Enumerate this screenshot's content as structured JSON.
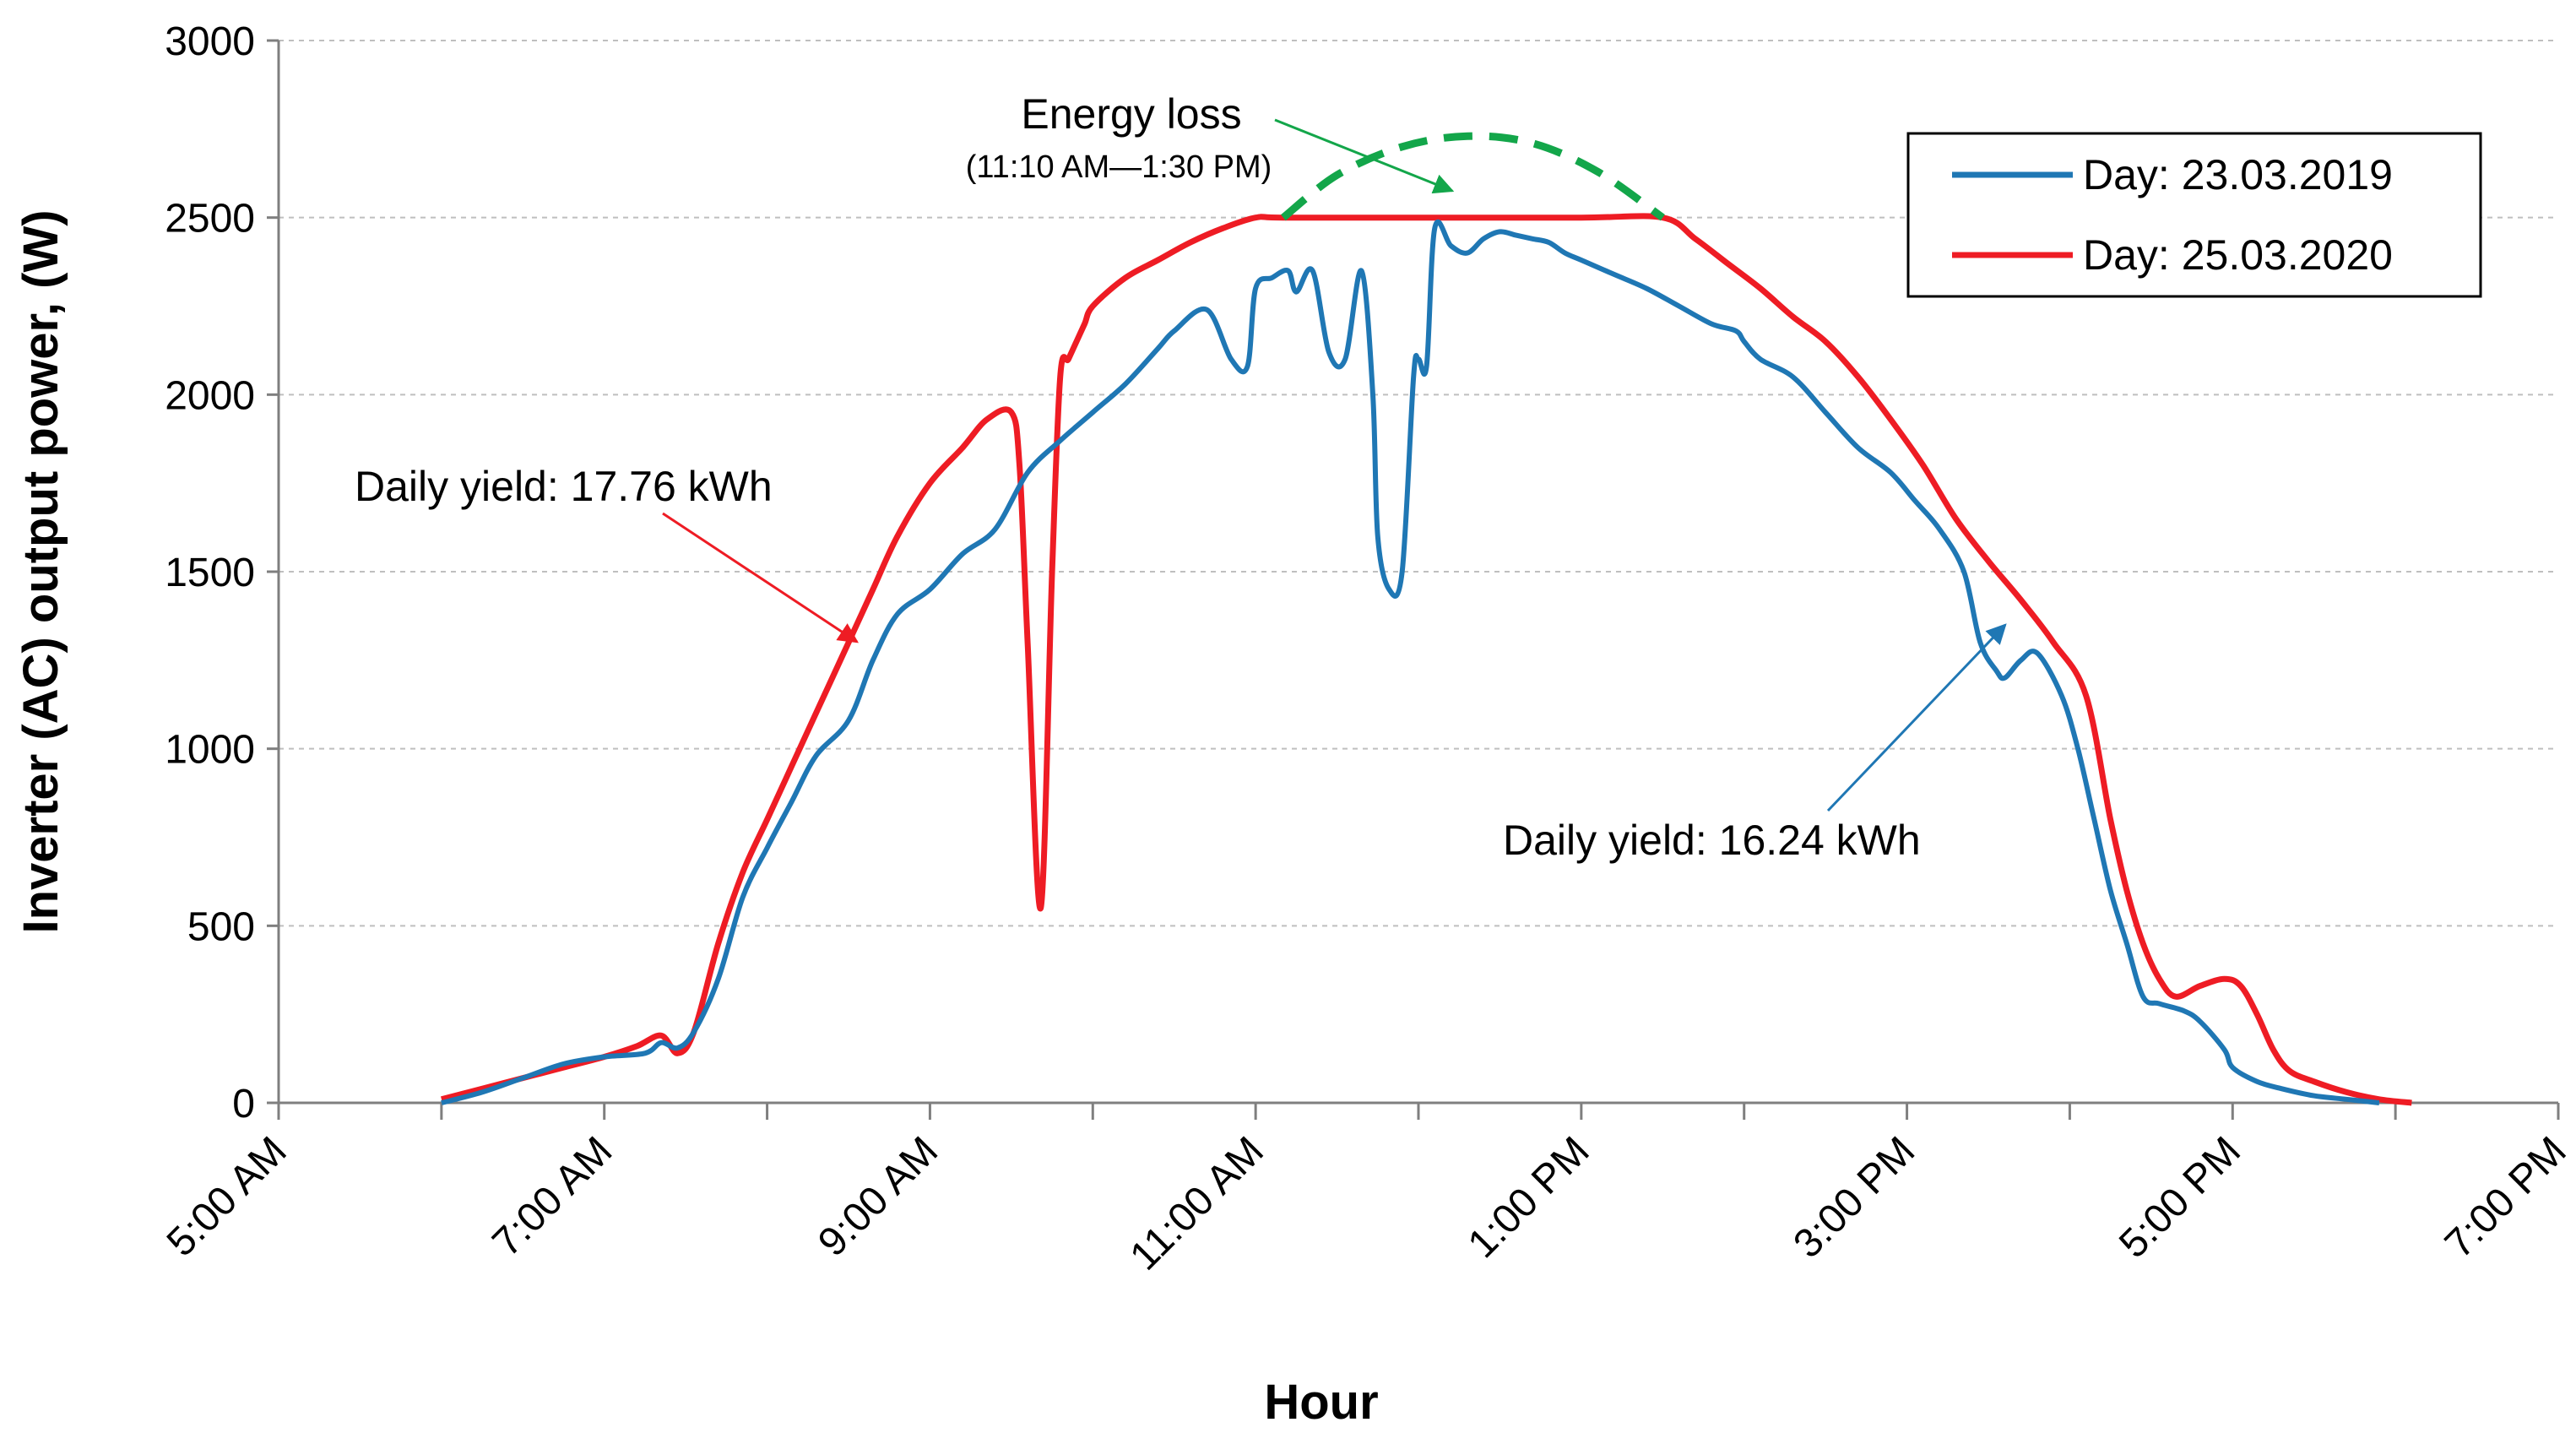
{
  "chart_data": {
    "type": "line",
    "title": "",
    "xlabel": "Hour",
    "ylabel": "Inverter (AC) output power, (W)",
    "xlim": [
      5,
      19
    ],
    "ylim": [
      0,
      3000
    ],
    "y_ticks": [
      0,
      500,
      1000,
      1500,
      2000,
      2500,
      3000
    ],
    "x_tick_values": [
      5,
      7,
      9,
      11,
      13,
      15,
      17,
      19
    ],
    "x_tick_labels": [
      "5:00 AM",
      "7:00 AM",
      "9:00 AM",
      "11:00 AM",
      "1:00 PM",
      "3:00 PM",
      "5:00 PM",
      "7:00 PM"
    ],
    "grid": "horizontal dashed",
    "legend_position": "top-right",
    "colors": {
      "series_2019": "#1f77b4",
      "series_2020": "#ee1c24",
      "energy_loss": "#13a64a"
    },
    "series": [
      {
        "name": "Day: 23.03.2019",
        "x": [
          6.0,
          6.25,
          6.5,
          6.75,
          7.0,
          7.25,
          7.35,
          7.45,
          7.55,
          7.7,
          7.85,
          8.0,
          8.15,
          8.3,
          8.5,
          8.65,
          8.8,
          9.0,
          9.2,
          9.4,
          9.6,
          9.8,
          10.0,
          10.2,
          10.4,
          10.5,
          10.7,
          10.85,
          10.95,
          11.0,
          11.1,
          11.2,
          11.25,
          11.35,
          11.45,
          11.55,
          11.65,
          11.72,
          11.75,
          11.82,
          11.9,
          11.97,
          12.0,
          12.05,
          12.1,
          12.2,
          12.3,
          12.4,
          12.5,
          12.6,
          12.7,
          12.8,
          12.9,
          13.0,
          13.2,
          13.4,
          13.6,
          13.8,
          13.95,
          14.0,
          14.1,
          14.3,
          14.5,
          14.7,
          14.9,
          15.05,
          15.2,
          15.35,
          15.45,
          15.55,
          15.6,
          15.7,
          15.8,
          15.95,
          16.05,
          16.15,
          16.25,
          16.35,
          16.45,
          16.55,
          16.7,
          16.8,
          16.95,
          17.0,
          17.15,
          17.3,
          17.5,
          17.7,
          17.9
        ],
        "y": [
          0,
          30,
          70,
          110,
          130,
          140,
          170,
          155,
          200,
          350,
          580,
          720,
          850,
          980,
          1080,
          1250,
          1380,
          1450,
          1550,
          1620,
          1780,
          1870,
          1950,
          2030,
          2130,
          2180,
          2240,
          2100,
          2080,
          2300,
          2330,
          2350,
          2290,
          2350,
          2120,
          2100,
          2350,
          2000,
          1600,
          1450,
          1500,
          2050,
          2100,
          2080,
          2470,
          2420,
          2400,
          2440,
          2460,
          2450,
          2440,
          2430,
          2400,
          2380,
          2340,
          2300,
          2250,
          2200,
          2180,
          2150,
          2100,
          2050,
          1950,
          1850,
          1780,
          1700,
          1620,
          1500,
          1300,
          1220,
          1200,
          1250,
          1270,
          1150,
          1000,
          800,
          600,
          450,
          300,
          280,
          260,
          230,
          150,
          100,
          60,
          40,
          20,
          10,
          0
        ]
      },
      {
        "name": "Day: 25.03.2020",
        "x": [
          6.0,
          6.25,
          6.5,
          6.75,
          7.0,
          7.2,
          7.35,
          7.45,
          7.55,
          7.7,
          7.85,
          8.0,
          8.15,
          8.3,
          8.5,
          8.65,
          8.8,
          9.0,
          9.2,
          9.35,
          9.5,
          9.55,
          9.6,
          9.68,
          9.75,
          9.8,
          9.85,
          9.9,
          9.95,
          10.0,
          10.2,
          10.4,
          10.6,
          10.8,
          11.0,
          11.17,
          12.0,
          13.0,
          13.5,
          13.7,
          13.9,
          14.1,
          14.3,
          14.5,
          14.7,
          14.9,
          15.1,
          15.3,
          15.5,
          15.7,
          15.9,
          16.1,
          16.25,
          16.35,
          16.45,
          16.55,
          16.65,
          16.8,
          16.95,
          17.05,
          17.15,
          17.25,
          17.35,
          17.5,
          17.7,
          17.9,
          18.1
        ],
        "y": [
          10,
          40,
          70,
          100,
          130,
          160,
          190,
          140,
          200,
          450,
          650,
          800,
          950,
          1100,
          1300,
          1450,
          1600,
          1750,
          1850,
          1930,
          1950,
          1800,
          1300,
          550,
          1500,
          2050,
          2100,
          2150,
          2200,
          2250,
          2330,
          2380,
          2430,
          2470,
          2500,
          2500,
          2500,
          2500,
          2500,
          2440,
          2370,
          2300,
          2220,
          2150,
          2050,
          1930,
          1800,
          1650,
          1530,
          1420,
          1300,
          1150,
          800,
          600,
          450,
          350,
          300,
          330,
          350,
          330,
          250,
          150,
          90,
          60,
          30,
          10,
          0
        ]
      }
    ],
    "energy_loss_curve": {
      "x": [
        11.17,
        11.5,
        11.9,
        12.3,
        12.7,
        13.1,
        13.5
      ],
      "y": [
        2500,
        2620,
        2700,
        2730,
        2710,
        2630,
        2500
      ]
    },
    "annotations": [
      {
        "text": "Energy loss",
        "subtext": "(11:10 AM—1:30 PM)",
        "target": [
          12.25,
          2565
        ]
      },
      {
        "text": "Daily yield: 17.76 kWh",
        "target": [
          8.6,
          1285
        ]
      },
      {
        "text": "Daily yield: 16.24 kWh",
        "target": [
          15.65,
          1360
        ]
      }
    ]
  }
}
